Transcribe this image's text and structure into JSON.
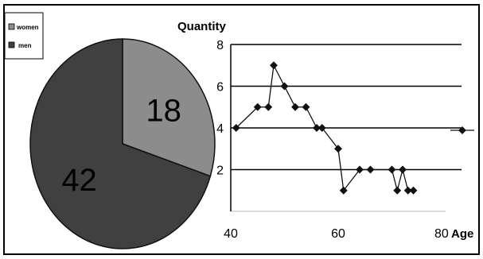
{
  "chart_data": [
    {
      "type": "pie",
      "legend_position": "top-left",
      "categories": [
        "women",
        "men"
      ],
      "values": [
        18,
        42
      ],
      "labels": [
        "18",
        "42"
      ],
      "colors": [
        "#8c8c8c",
        "#404040"
      ]
    },
    {
      "type": "line",
      "ylabel": "Quantity",
      "xlabel": "Age",
      "xlim": [
        40,
        80
      ],
      "ylim": [
        0,
        8
      ],
      "x_ticks": [
        "40",
        "60",
        "80"
      ],
      "y_ticks": [
        "2",
        "4",
        "6",
        "8"
      ],
      "grid": true,
      "legend_position": "right",
      "series": [
        {
          "x": [
            41,
            45,
            47,
            48,
            50,
            52,
            54,
            56,
            57,
            60,
            61,
            64,
            66,
            70,
            71,
            72,
            73,
            74
          ],
          "y": [
            4,
            5,
            5,
            7,
            6,
            5,
            5,
            4,
            4,
            3,
            1,
            2,
            2,
            2,
            1,
            2,
            1,
            1
          ],
          "color": "#111111"
        }
      ]
    }
  ]
}
